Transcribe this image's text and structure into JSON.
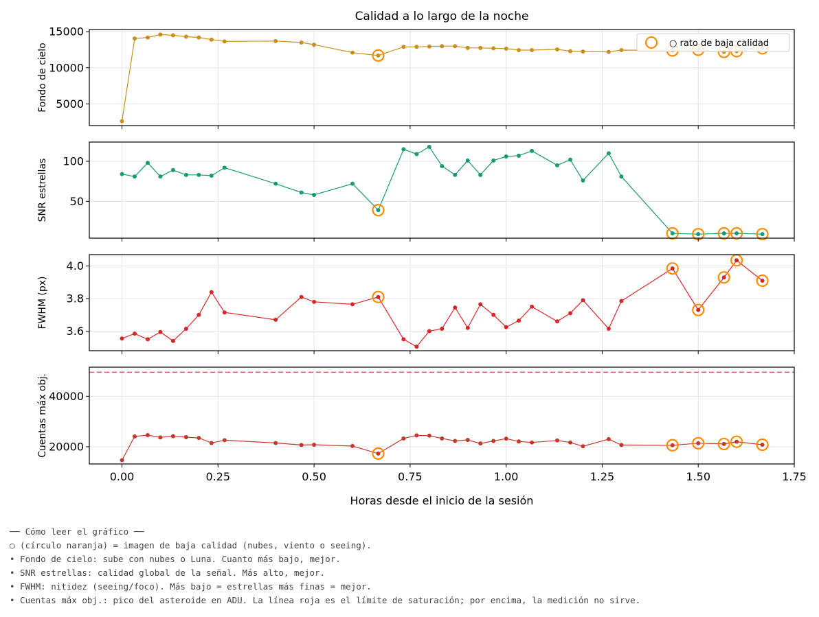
{
  "chart_data": {
    "type": "line",
    "title": "Calidad a lo largo de la noche",
    "xlabel": "Horas desde el inicio de la sesión",
    "xlim": [
      -0.085,
      1.75
    ],
    "xticks": [
      "0.00",
      "0.25",
      "0.50",
      "0.75",
      "1.00",
      "1.25",
      "1.50",
      "1.75"
    ],
    "xtick_values": [
      0,
      0.25,
      0.5,
      0.75,
      1.0,
      1.25,
      1.5,
      1.75
    ],
    "x": [
      0.0,
      0.033,
      0.067,
      0.1,
      0.133,
      0.167,
      0.2,
      0.233,
      0.267,
      0.4,
      0.467,
      0.5,
      0.6,
      0.667,
      0.733,
      0.767,
      0.8,
      0.833,
      0.867,
      0.9,
      0.933,
      0.967,
      1.0,
      1.033,
      1.067,
      1.133,
      1.167,
      1.2,
      1.267,
      1.3,
      1.433,
      1.5,
      1.567,
      1.6,
      1.667
    ],
    "bad_indices": [
      13,
      30,
      31,
      32,
      33,
      34
    ],
    "grid": true,
    "legend": {
      "label": "○ rato de baja calidad",
      "placement": "top-right",
      "panel": 0
    },
    "colors": {
      "bad_marker": "#ff8c00",
      "saturation_line": "#cd5c5c"
    },
    "panels": [
      {
        "ylabel": "Fondo de cielo",
        "ylim": [
          2000,
          15300
        ],
        "yticks": [
          "5000",
          "10000",
          "15000"
        ],
        "ytick_values": [
          5000,
          10000,
          15000
        ],
        "color": "#c8901a",
        "values": [
          2600,
          14050,
          14200,
          14600,
          14500,
          14300,
          14200,
          13900,
          13650,
          13700,
          13500,
          13200,
          12100,
          11700,
          12900,
          12900,
          12950,
          13000,
          13000,
          12750,
          12750,
          12700,
          12650,
          12450,
          12450,
          12550,
          12300,
          12250,
          12200,
          12450,
          12400,
          12500,
          12200,
          12300,
          12700
        ]
      },
      {
        "ylabel": "SNR estrellas",
        "ylim": [
          4,
          124
        ],
        "yticks": [
          "50",
          "100"
        ],
        "ytick_values": [
          50,
          100
        ],
        "color": "#1a9a70",
        "values": [
          84,
          81,
          98,
          81,
          89,
          83,
          83,
          82,
          92,
          72,
          61,
          58,
          72,
          39,
          115,
          109,
          118,
          94,
          83,
          101,
          83,
          101,
          106,
          107,
          113,
          95,
          102,
          76,
          110,
          81,
          10,
          9,
          10,
          10,
          9
        ]
      },
      {
        "ylabel": "FWHM (px)",
        "ylim": [
          3.48,
          4.07
        ],
        "yticks": [
          "3.6",
          "3.8",
          "4.0"
        ],
        "ytick_values": [
          3.6,
          3.8,
          4.0
        ],
        "color": "#d62728",
        "values": [
          3.555,
          3.585,
          3.55,
          3.595,
          3.54,
          3.615,
          3.7,
          3.84,
          3.715,
          3.67,
          3.81,
          3.78,
          3.765,
          3.81,
          3.55,
          3.505,
          3.6,
          3.615,
          3.745,
          3.62,
          3.765,
          3.7,
          3.625,
          3.665,
          3.75,
          3.66,
          3.71,
          3.79,
          3.615,
          3.785,
          3.985,
          3.73,
          3.93,
          4.035,
          3.91
        ]
      },
      {
        "ylabel": "Cuentas máx obj.",
        "ylim": [
          13200,
          51500
        ],
        "yticks": [
          "20000",
          "40000"
        ],
        "ytick_values": [
          20000,
          40000
        ],
        "color": "#c0392b",
        "saturation_limit": 49500,
        "values": [
          14700,
          24100,
          24600,
          23700,
          24200,
          23800,
          23500,
          21500,
          22600,
          21500,
          20700,
          20800,
          20300,
          17300,
          23300,
          24500,
          24400,
          23300,
          22300,
          22700,
          21300,
          22300,
          23200,
          22100,
          21700,
          22500,
          21700,
          20200,
          23000,
          20700,
          20600,
          21400,
          21100,
          22000,
          20800
        ]
      }
    ]
  },
  "notes": {
    "header": "── Cómo leer el gráfico ──",
    "lines": [
      "○ (círculo naranja) = imagen de baja calidad (nubes, viento o seeing).",
      "• Fondo de cielo: sube con nubes o Luna. Cuanto más bajo, mejor.",
      "• SNR estrellas: calidad global de la señal. Más alto, mejor.",
      "• FWHM: nitidez (seeing/foco). Más bajo = estrellas más finas = mejor.",
      "• Cuentas máx obj.: pico del asteroide en ADU. La línea roja es el límite de saturación; por encima, la medición no sirve."
    ]
  }
}
